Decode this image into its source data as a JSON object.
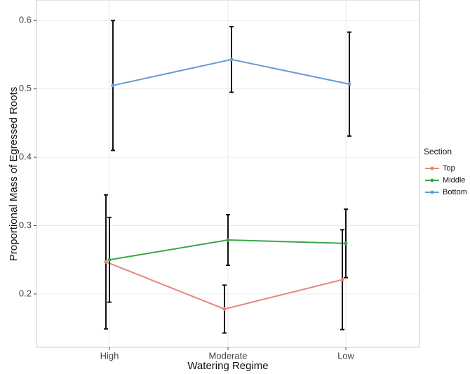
{
  "chart_data": {
    "type": "line",
    "x_label": "Watering Regime",
    "y_label": "Proportional Mass of Egressed Roots",
    "legend_title": "Section",
    "legend_position": "right",
    "categories": [
      "High",
      "Moderate",
      "Low"
    ],
    "series": [
      {
        "name": "Top",
        "color": "#e6847b",
        "values": [
          0.247,
          0.178,
          0.221
        ],
        "errors": [
          0.098,
          0.035,
          0.073
        ]
      },
      {
        "name": "Middle",
        "color": "#3aa64a",
        "values": [
          0.25,
          0.279,
          0.274
        ],
        "errors": [
          0.062,
          0.037,
          0.05
        ]
      },
      {
        "name": "Bottom",
        "color": "#6b9bd2",
        "values": [
          0.505,
          0.543,
          0.507
        ],
        "errors": [
          0.095,
          0.048,
          0.076
        ]
      }
    ],
    "ylim": [
      0.122,
      0.63
    ],
    "yticks": [
      0.2,
      0.3,
      0.4,
      0.5,
      0.6
    ],
    "grid": true
  }
}
